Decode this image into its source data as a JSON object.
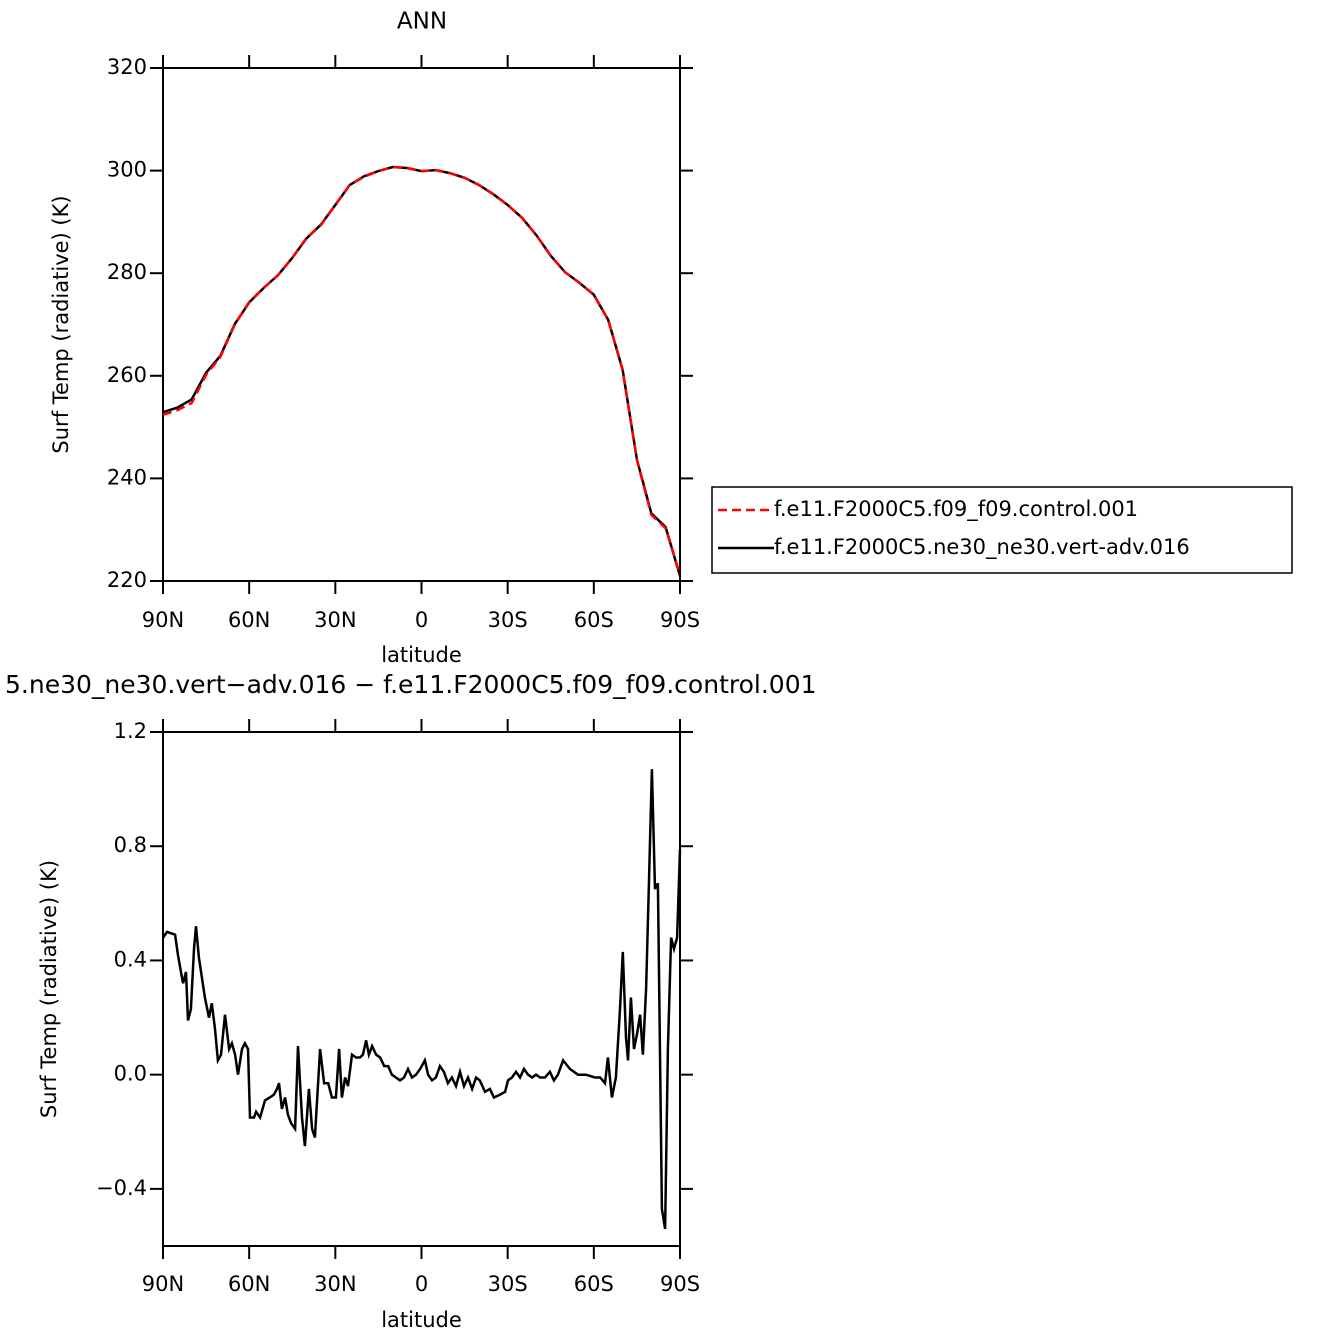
{
  "chart_data": [
    {
      "type": "line",
      "title": "ANN",
      "xlabel": "latitude",
      "ylabel": "Surf Temp (radiative) (K)",
      "x": [
        90,
        85,
        80,
        75,
        70,
        65,
        60,
        55,
        50,
        45,
        40,
        35,
        30,
        25,
        20,
        15,
        10,
        5,
        0,
        -5,
        -10,
        -15,
        -20,
        -25,
        -30,
        -35,
        -40,
        -45,
        -50,
        -55,
        -60,
        -65,
        -70,
        -75,
        -80,
        -85,
        -90
      ],
      "series": [
        {
          "name": "f.e11.F2000C5.f09_f09.control.001",
          "color": "#ff0000",
          "dash": "dashed",
          "values": [
            252.4,
            253.3,
            254.7,
            260.2,
            263.7,
            270,
            274.4,
            277.1,
            279.6,
            283,
            286.9,
            289.4,
            293.3,
            297.2,
            298.8,
            299.9,
            300.7,
            300.5,
            299.9,
            300.1,
            299.5,
            298.6,
            297.2,
            295.4,
            293.3,
            290.8,
            287.4,
            283.4,
            280.2,
            278.1,
            275.8,
            270.9,
            261.1,
            243.6,
            232.9,
            230.3,
            221.2
          ]
        },
        {
          "name": "f.e11.F2000C5.ne30_ne30.vert-adv.016",
          "color": "#000000",
          "dash": "solid",
          "values": [
            252.9,
            253.8,
            255.4,
            260.6,
            263.9,
            270.1,
            274.3,
            277.1,
            279.6,
            283,
            286.8,
            289.5,
            293.3,
            297.2,
            298.9,
            299.9,
            300.7,
            300.5,
            299.9,
            300.1,
            299.5,
            298.6,
            297.2,
            295.4,
            293.3,
            290.8,
            287.4,
            283.4,
            280.2,
            278.1,
            275.8,
            270.9,
            261.2,
            243.7,
            233.2,
            230.5,
            221.0
          ]
        }
      ],
      "xlim": [
        90,
        -90
      ],
      "xticks": [
        {
          "value": 90,
          "label": "90N"
        },
        {
          "value": 60,
          "label": "60N"
        },
        {
          "value": 30,
          "label": "30N"
        },
        0,
        {
          "value": -30,
          "label": "30S"
        },
        {
          "value": -60,
          "label": "60S"
        },
        {
          "value": -90,
          "label": "90S"
        }
      ],
      "ylim": [
        220,
        320
      ],
      "yticks": [
        220,
        240,
        260,
        280,
        300,
        320
      ],
      "grid": false,
      "legend": "right"
    },
    {
      "type": "line",
      "title": "5.ne30_ne30.vert−adv.016 − f.e11.F2000C5.f09_f09.control.001",
      "xlabel": "latitude",
      "ylabel": "Surf Temp (radiative) (K)",
      "x": [
        90.0,
        88.6,
        85.8,
        84.8,
        83.4,
        83.0,
        82.0,
        81.3,
        80.3,
        79.2,
        78.5,
        77.5,
        75.4,
        74.0,
        73.0,
        71.9,
        70.9,
        69.8,
        68.4,
        67.0,
        66.0,
        64.9,
        63.9,
        62.5,
        61.5,
        60.4,
        59.7,
        58.3,
        57.6,
        56.2,
        54.5,
        52.8,
        51.4,
        50.3,
        49.6,
        48.6,
        47.5,
        46.5,
        45.4,
        44.0,
        43.0,
        41.6,
        40.6,
        39.2,
        38.1,
        37.1,
        35.3,
        33.9,
        32.5,
        31.2,
        29.8,
        28.7,
        27.7,
        26.6,
        25.6,
        24.2,
        22.8,
        21.4,
        20.4,
        19.3,
        18.3,
        17.2,
        15.8,
        14.4,
        13.0,
        11.6,
        10.3,
        8.9,
        7.5,
        6.1,
        4.7,
        3.3,
        1.9,
        0.5,
        -1.2,
        -2.3,
        -3.7,
        -5.0,
        -6.4,
        -7.8,
        -9.2,
        -10.6,
        -12.0,
        -13.4,
        -14.8,
        -16.2,
        -17.6,
        -19.0,
        -20.3,
        -22.1,
        -23.8,
        -25.2,
        -27.3,
        -29.1,
        -30.1,
        -31.5,
        -32.9,
        -34.3,
        -35.7,
        -37.1,
        -38.5,
        -39.9,
        -41.3,
        -43.0,
        -44.7,
        -46.1,
        -47.5,
        -49.3,
        -51.7,
        -54.5,
        -57.3,
        -60.4,
        -62.2,
        -63.9,
        -64.9,
        -66.3,
        -67.7,
        -69.1,
        -70.1,
        -71.2,
        -71.9,
        -72.9,
        -74.0,
        -75.0,
        -76.1,
        -77.1,
        -78.2,
        -79.2,
        -80.2,
        -81.3,
        -82.3,
        -83.7,
        -84.8,
        -85.8,
        -86.9,
        -87.9,
        -89.0,
        -90.0
      ],
      "values": [
        0.48,
        0.5,
        0.49,
        0.42,
        0.34,
        0.32,
        0.36,
        0.19,
        0.23,
        0.44,
        0.52,
        0.41,
        0.27,
        0.2,
        0.25,
        0.16,
        0.05,
        0.07,
        0.21,
        0.09,
        0.11,
        0.07,
        0.0,
        0.09,
        0.11,
        0.09,
        -0.15,
        -0.15,
        -0.13,
        -0.15,
        -0.09,
        -0.08,
        -0.07,
        -0.05,
        -0.03,
        -0.12,
        -0.08,
        -0.14,
        -0.17,
        -0.19,
        0.1,
        -0.15,
        -0.25,
        -0.05,
        -0.19,
        -0.22,
        0.09,
        -0.03,
        -0.03,
        -0.08,
        -0.08,
        0.09,
        -0.08,
        -0.01,
        -0.04,
        0.07,
        0.06,
        0.06,
        0.07,
        0.12,
        0.07,
        0.1,
        0.07,
        0.06,
        0.03,
        0.03,
        0.0,
        -0.01,
        -0.02,
        -0.01,
        0.02,
        -0.01,
        0.0,
        0.02,
        0.05,
        0.0,
        -0.02,
        -0.01,
        0.03,
        0.01,
        -0.03,
        -0.01,
        -0.04,
        0.01,
        -0.04,
        -0.01,
        -0.05,
        -0.01,
        -0.02,
        -0.06,
        -0.05,
        -0.08,
        -0.07,
        -0.06,
        -0.02,
        -0.01,
        0.01,
        -0.01,
        0.02,
        0.0,
        -0.01,
        0.0,
        -0.01,
        -0.01,
        0.01,
        -0.02,
        0.0,
        0.05,
        0.02,
        0.0,
        0.0,
        -0.01,
        -0.01,
        -0.03,
        0.06,
        -0.08,
        -0.01,
        0.23,
        0.43,
        0.13,
        0.05,
        0.27,
        0.09,
        0.14,
        0.21,
        0.07,
        0.3,
        0.68,
        1.07,
        0.65,
        0.67,
        -0.47,
        -0.54,
        0.09,
        0.48,
        0.44,
        0.48,
        0.79
      ],
      "color": "#000000",
      "xlim": [
        90,
        -90
      ],
      "xticks": [
        {
          "value": 90,
          "label": "90N"
        },
        {
          "value": 60,
          "label": "60N"
        },
        {
          "value": 30,
          "label": "30N"
        },
        0,
        {
          "value": -30,
          "label": "30S"
        },
        {
          "value": -60,
          "label": "60S"
        },
        {
          "value": -90,
          "label": "90S"
        }
      ],
      "ylim": [
        -0.6,
        1.2
      ],
      "yticks": [
        {
          "value": -0.4,
          "label": "−0.4"
        },
        {
          "value": 0,
          "label": "0.0"
        },
        0.4,
        0.8,
        1.2
      ],
      "grid": false
    }
  ]
}
